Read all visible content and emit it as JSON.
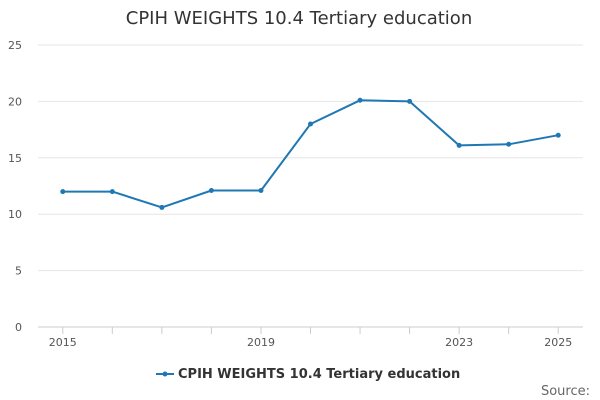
{
  "chart_data": {
    "type": "line",
    "title": "CPIH WEIGHTS 10.4 Tertiary education",
    "xlabel": "",
    "ylabel": "",
    "x": [
      2015,
      2016,
      2017,
      2018,
      2019,
      2020,
      2021,
      2022,
      2023,
      2024,
      2025
    ],
    "x_tick_labels": [
      "2015",
      "2019",
      "2023",
      "2025"
    ],
    "x_tick_values": [
      2015,
      2019,
      2023,
      2025
    ],
    "xlim": [
      2014.5,
      2025.5
    ],
    "ylim": [
      0,
      25
    ],
    "y_ticks": [
      0,
      5,
      10,
      15,
      20,
      25
    ],
    "y_tick_labels": [
      "0",
      "5",
      "10",
      "15",
      "20",
      "25"
    ],
    "grid": true,
    "legend_position": "bottom",
    "series": [
      {
        "name": "CPIH WEIGHTS 10.4 Tertiary education",
        "color": "#1f78b4",
        "values": [
          12.0,
          12.0,
          10.6,
          12.1,
          12.1,
          18.0,
          20.1,
          20.0,
          16.1,
          16.2,
          17.0
        ]
      }
    ]
  },
  "source_label": "Source:"
}
